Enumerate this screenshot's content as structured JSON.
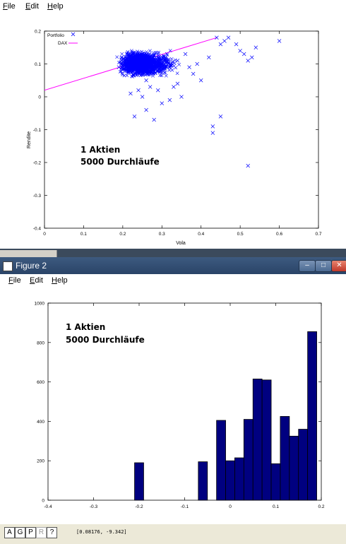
{
  "window1": {
    "menu": [
      "File",
      "Edit",
      "Help"
    ]
  },
  "window2": {
    "title": "Figure 2",
    "menu": [
      "File",
      "Edit",
      "Help"
    ],
    "controls": {
      "minimize": "–",
      "maximize": "□",
      "close": "✕"
    },
    "toolbar": [
      "A",
      "G",
      "P",
      "R",
      "?"
    ],
    "coordinates": "[0.08176, -9.342]"
  },
  "annotation": {
    "line1": "1 Aktien",
    "line2": "5000 Durchläufe"
  },
  "chart_data": [
    {
      "type": "scatter",
      "xlabel": "Vola",
      "ylabel": "Rendite",
      "xlim": [
        0,
        0.7
      ],
      "ylim": [
        -0.4,
        0.2
      ],
      "xticks": [
        "0",
        "0.1",
        "0.2",
        "0.3",
        "0.4",
        "0.5",
        "0.6",
        "0.7"
      ],
      "yticks": [
        "0.2",
        "0.1",
        "0",
        "-0.1",
        "-0.2",
        "-0.3",
        "-0.4"
      ],
      "legend_position": "top-left",
      "series": [
        {
          "name": "Portfolio",
          "marker": "x",
          "color": "#0000ff",
          "cluster": {
            "x_range": [
              0.18,
              0.36
            ],
            "y_range": [
              0.02,
              0.16
            ],
            "center": [
              0.24,
              0.1
            ]
          },
          "points": [
            [
              0.6,
              0.17
            ],
            [
              0.53,
              0.12
            ],
            [
              0.52,
              0.11
            ],
            [
              0.5,
              0.14
            ],
            [
              0.46,
              0.17
            ],
            [
              0.45,
              0.16
            ],
            [
              0.42,
              0.12
            ],
            [
              0.52,
              -0.21
            ],
            [
              0.43,
              -0.09
            ],
            [
              0.43,
              -0.11
            ],
            [
              0.45,
              -0.06
            ],
            [
              0.32,
              -0.01
            ],
            [
              0.28,
              -0.07
            ],
            [
              0.26,
              -0.04
            ],
            [
              0.23,
              -0.06
            ],
            [
              0.36,
              0.13
            ],
            [
              0.34,
              0.11
            ],
            [
              0.38,
              0.07
            ],
            [
              0.33,
              0.03
            ],
            [
              0.4,
              0.05
            ],
            [
              0.3,
              0.1
            ],
            [
              0.31,
              0.12
            ],
            [
              0.21,
              0.13
            ],
            [
              0.19,
              0.09
            ],
            [
              0.35,
              0.0
            ],
            [
              0.24,
              0.02
            ],
            [
              0.27,
              0.03
            ],
            [
              0.44,
              0.18
            ],
            [
              0.47,
              0.18
            ],
            [
              0.49,
              0.16
            ],
            [
              0.51,
              0.13
            ],
            [
              0.54,
              0.15
            ],
            [
              0.39,
              0.1
            ],
            [
              0.37,
              0.09
            ],
            [
              0.34,
              0.04
            ],
            [
              0.22,
              0.01
            ],
            [
              0.25,
              0.0
            ],
            [
              0.3,
              -0.02
            ],
            [
              0.26,
              0.05
            ],
            [
              0.29,
              0.02
            ]
          ]
        },
        {
          "name": "DAX",
          "type": "line",
          "color": "#ff00ff",
          "points": [
            [
              0,
              0.02
            ],
            [
              0.44,
              0.18
            ]
          ]
        }
      ]
    },
    {
      "type": "bar",
      "xlim": [
        -0.4,
        0.2
      ],
      "ylim": [
        0,
        1000
      ],
      "xticks": [
        "-0.4",
        "-0.3",
        "-0.2",
        "-0.1",
        "0",
        "0.1",
        "0.2"
      ],
      "yticks": [
        "1000",
        "800",
        "600",
        "400",
        "200",
        "0"
      ],
      "bar_width": 0.02,
      "color": "#000080",
      "x": [
        -0.2,
        -0.06,
        -0.02,
        0.0,
        0.02,
        0.04,
        0.06,
        0.08,
        0.1,
        0.12,
        0.14,
        0.16,
        0.18
      ],
      "values": [
        190,
        195,
        405,
        200,
        215,
        410,
        615,
        610,
        185,
        425,
        325,
        360,
        855
      ]
    }
  ]
}
